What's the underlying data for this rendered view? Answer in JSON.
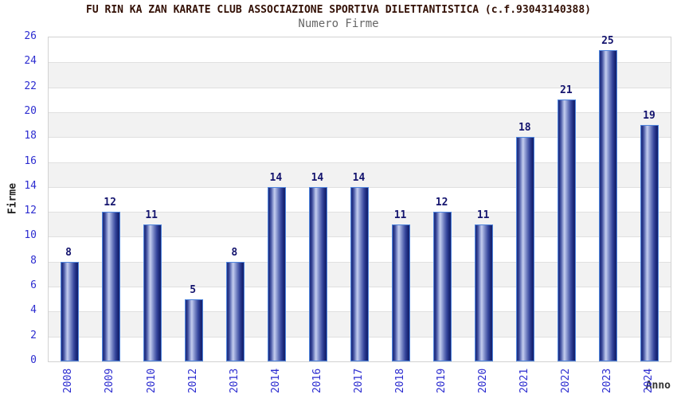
{
  "header": {
    "title": "FU RIN KA ZAN KARATE CLUB ASSOCIAZIONE SPORTIVA DILETTANTISTICA (c.f.93043140388)",
    "subtitle": "Numero Firme"
  },
  "chart_data": {
    "type": "bar",
    "title": "FU RIN KA ZAN KARATE CLUB ASSOCIAZIONE SPORTIVA DILETTANTISTICA (c.f.93043140388)",
    "subtitle": "Numero Firme",
    "xlabel": "Anno",
    "ylabel": "Firme",
    "categories": [
      "2008",
      "2009",
      "2010",
      "2012",
      "2013",
      "2014",
      "2016",
      "2017",
      "2018",
      "2019",
      "2020",
      "2021",
      "2022",
      "2023",
      "2024"
    ],
    "values": [
      8,
      12,
      11,
      5,
      8,
      14,
      14,
      14,
      11,
      12,
      11,
      18,
      21,
      25,
      19
    ],
    "ylim": [
      0,
      26
    ],
    "ytick_step": 2,
    "grid": "alternating-horizontal-bands",
    "legend": "none",
    "colors": {
      "bar_dark": "#1b2878",
      "bar_light": "#c4cdee",
      "bar_border": "#4f85dd",
      "tick_label": "#2d2dd0",
      "value_label": "#14146e",
      "title": "#331005",
      "subtitle": "#666666",
      "band_gray": "#f2f2f2",
      "plot_border": "#d2d2d2"
    }
  }
}
